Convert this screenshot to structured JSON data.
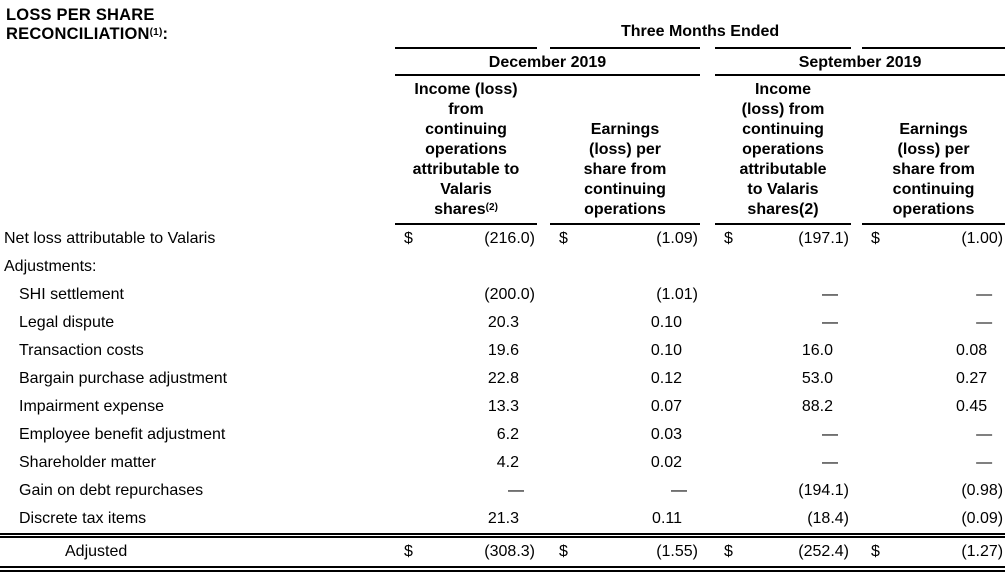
{
  "title": {
    "line1": "LOSS PER SHARE",
    "line2": "RECONCILIATION",
    "sup": "(1)",
    "suffix": ":"
  },
  "currency_symbol": "$",
  "header": {
    "period_group": "Three Months Ended",
    "periods": [
      {
        "label": "December 2019"
      },
      {
        "label": "September 2019"
      }
    ],
    "columns": [
      {
        "text": "Income (loss)\nfrom\ncontinuing\noperations\nattributable to\nValaris\nshares",
        "sup": "(2)"
      },
      {
        "text": "Earnings\n(loss) per\nshare from\ncontinuing\noperations",
        "sup": ""
      },
      {
        "text": "Income\n(loss) from\ncontinuing\noperations\nattributable\nto Valaris\nshares(2)",
        "sup": ""
      },
      {
        "text": "Earnings\n(loss) per\nshare from\ncontinuing\noperations",
        "sup": ""
      }
    ]
  },
  "rows": [
    {
      "label": "Net loss attributable to Valaris",
      "indent": 0,
      "dollar": true,
      "total": false,
      "values": [
        "(216.0)",
        "(1.09)",
        "(197.1)",
        "(1.00)"
      ]
    },
    {
      "label": "Adjustments:",
      "indent": 0,
      "dollar": false,
      "total": false,
      "values": [
        "",
        "",
        "",
        ""
      ]
    },
    {
      "label": "SHI settlement",
      "indent": 1,
      "dollar": false,
      "total": false,
      "values": [
        "(200.0)",
        "(1.01)",
        "—",
        "—"
      ]
    },
    {
      "label": "Legal dispute",
      "indent": 1,
      "dollar": false,
      "total": false,
      "values": [
        "20.3",
        "0.10",
        "—",
        "—"
      ]
    },
    {
      "label": "Transaction costs",
      "indent": 1,
      "dollar": false,
      "total": false,
      "values": [
        "19.6",
        "0.10",
        "16.0",
        "0.08"
      ]
    },
    {
      "label": "Bargain purchase adjustment",
      "indent": 1,
      "dollar": false,
      "total": false,
      "values": [
        "22.8",
        "0.12",
        "53.0",
        "0.27"
      ]
    },
    {
      "label": "Impairment expense",
      "indent": 1,
      "dollar": false,
      "total": false,
      "values": [
        "13.3",
        "0.07",
        "88.2",
        "0.45"
      ]
    },
    {
      "label": "Employee benefit adjustment",
      "indent": 1,
      "dollar": false,
      "total": false,
      "values": [
        "6.2",
        "0.03",
        "—",
        "—"
      ]
    },
    {
      "label": "Shareholder matter",
      "indent": 1,
      "dollar": false,
      "total": false,
      "values": [
        "4.2",
        "0.02",
        "—",
        "—"
      ]
    },
    {
      "label": "Gain on debt repurchases",
      "indent": 1,
      "dollar": false,
      "total": false,
      "values": [
        "—",
        "—",
        "(194.1)",
        "(0.98)"
      ]
    },
    {
      "label": "Discrete tax items",
      "indent": 1,
      "dollar": false,
      "total": false,
      "values": [
        "21.3",
        "0.11",
        "(18.4)",
        "(0.09)"
      ]
    },
    {
      "label": "Adjusted",
      "indent": 2,
      "dollar": true,
      "total": true,
      "values": [
        "(308.3)",
        "(1.55)",
        "(252.4)",
        "(1.27)"
      ]
    }
  ]
}
